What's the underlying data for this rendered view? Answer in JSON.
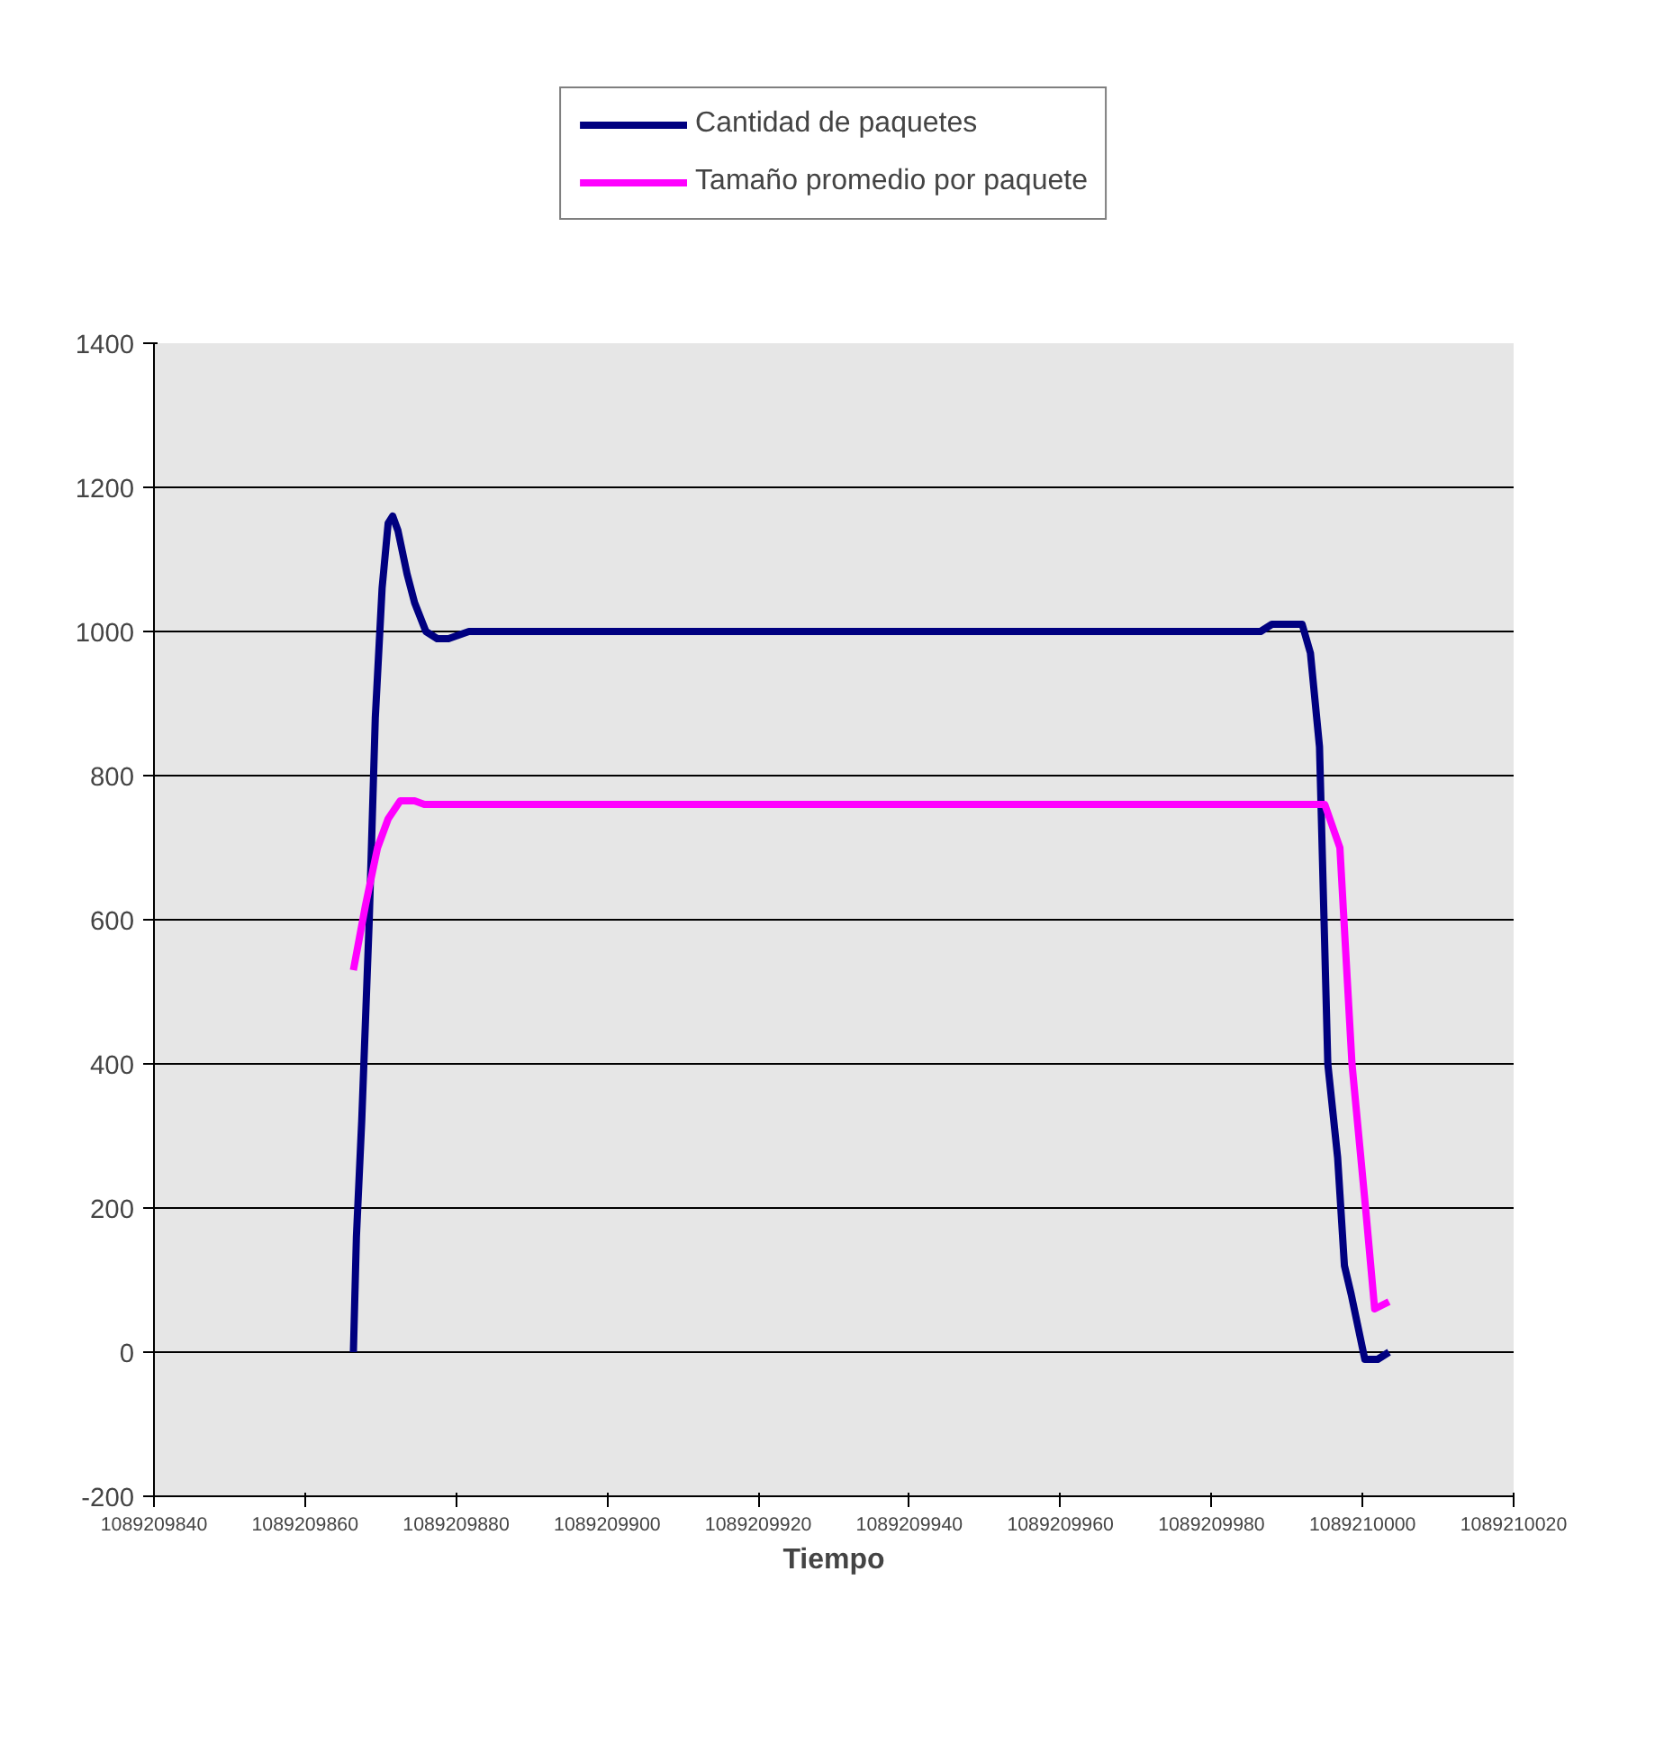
{
  "chart_data": {
    "type": "line",
    "xlabel": "Tiempo",
    "xlim": [
      1089209840,
      1089210020
    ],
    "xticks": [
      1089209840,
      1089209860,
      1089209880,
      1089209900,
      1089209920,
      1089209940,
      1089209960,
      1089209980,
      1089210000,
      1089210020
    ],
    "ylim": [
      -200,
      1400
    ],
    "yticks": [
      -200,
      0,
      200,
      400,
      600,
      800,
      1000,
      1200,
      1400
    ],
    "grid": "y",
    "legend": "top",
    "marker": "none",
    "line_style": "solid",
    "series": [
      {
        "name": "Cantidad de paquetes",
        "color": "#000080",
        "x": [
          1089209866.4,
          1089209866.8,
          1089209867.5,
          1089209868.5,
          1089209869.3,
          1089209870.2,
          1089209871.0,
          1089209871.6,
          1089209872.3,
          1089209873.5,
          1089209874.5,
          1089209876.0,
          1089209877.5,
          1089209879.0,
          1089209881.7,
          1089209900,
          1089209950,
          1089209986.5,
          1089209988.0,
          1089209990.0,
          1089209992.0,
          1089209993.1,
          1089209994.3,
          1089209995.4,
          1089209996.7,
          1089209997.6,
          1089209998.5,
          1089210000.3,
          1089210002.0,
          1089210003.5
        ],
        "values": [
          0,
          160,
          320,
          600,
          880,
          1060,
          1150,
          1160,
          1140,
          1080,
          1040,
          1000,
          990,
          990,
          1000,
          1000,
          1000,
          1000,
          1010,
          1010,
          1010,
          970,
          840,
          400,
          270,
          120,
          80,
          -10,
          -10,
          0
        ]
      },
      {
        "name": "Tamaño promedio por paquete",
        "color": "#ff00ff",
        "x": [
          1089209866.4,
          1089209868.0,
          1089209869.6,
          1089209871.0,
          1089209872.6,
          1089209874.5,
          1089209875.8,
          1089209900,
          1089209950,
          1089209993.7,
          1089209995.0,
          1089209997.0,
          1089209998.6,
          1089210000.4,
          1089210001.6,
          1089210003.5
        ],
        "values": [
          530,
          620,
          700,
          740,
          765,
          765,
          760,
          760,
          760,
          760,
          760,
          700,
          400,
          200,
          60,
          70
        ]
      }
    ]
  }
}
